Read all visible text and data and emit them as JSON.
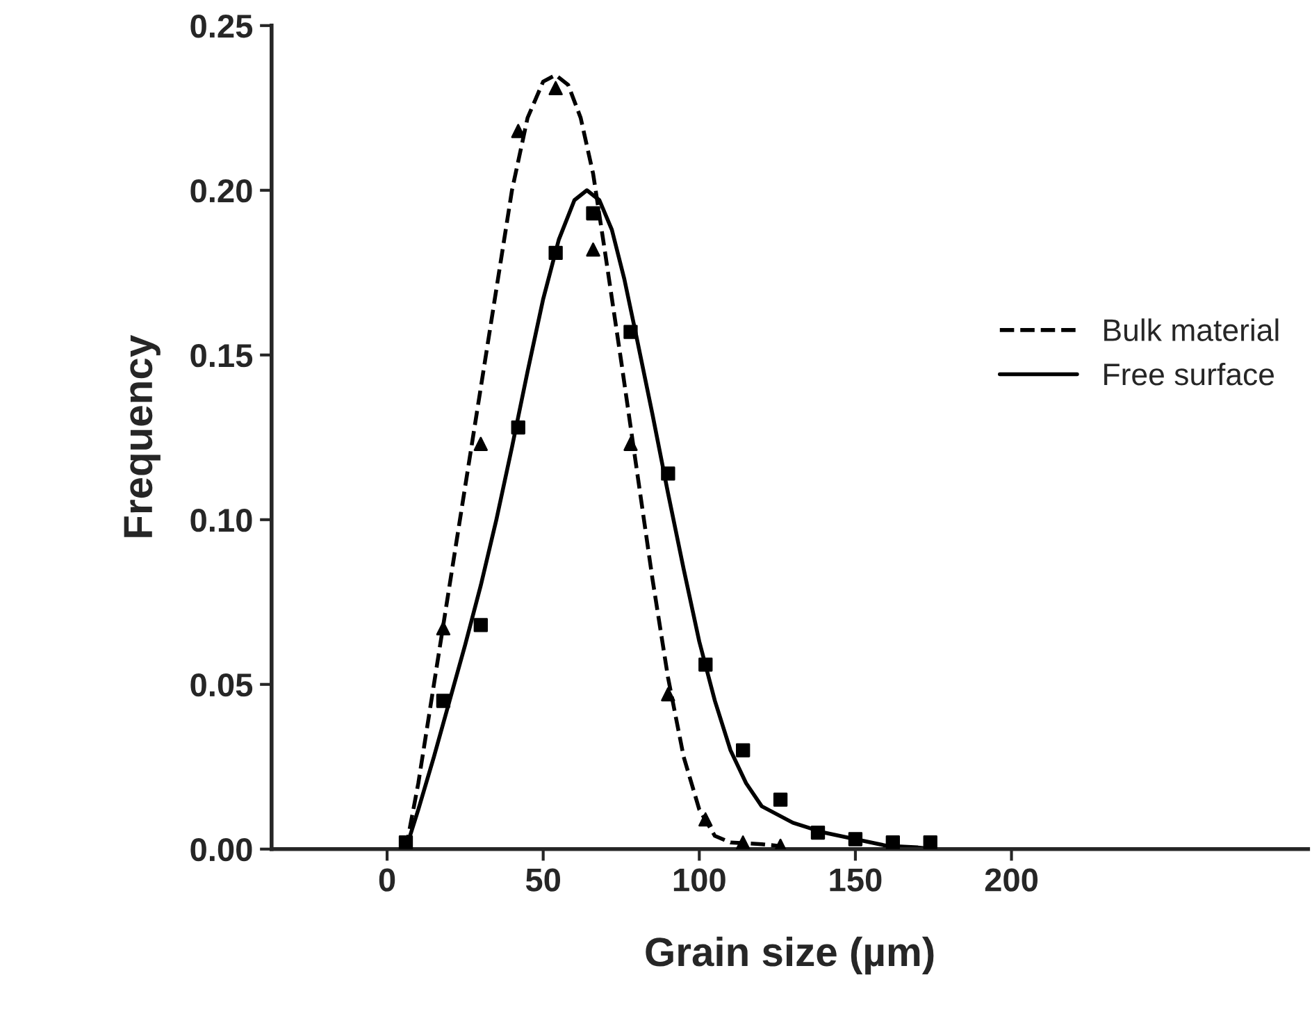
{
  "chart_data": {
    "type": "line",
    "xlabel": "Grain size (µm)",
    "ylabel": "Frequency",
    "xlim": [
      -37,
      295
    ],
    "xticks": [
      0,
      50,
      100,
      150,
      200
    ],
    "ylim": [
      0,
      0.25
    ],
    "yticks": [
      {
        "value": 0,
        "label": "0.00"
      },
      {
        "value": 0.05,
        "label": "0.05"
      },
      {
        "value": 0.1,
        "label": "0.10"
      },
      {
        "value": 0.15,
        "label": "0.15"
      },
      {
        "value": 0.2,
        "label": "0.20"
      },
      {
        "value": 0.25,
        "label": "0.25"
      }
    ],
    "grid": false,
    "legend": "right",
    "series": [
      {
        "name": "Bulk material",
        "color": "#000000",
        "line_style": "dashed",
        "marker": "none",
        "x": [
          6,
          10,
          15,
          20,
          25,
          30,
          35,
          40,
          45,
          50,
          54,
          58,
          62,
          66,
          70,
          75,
          80,
          85,
          90,
          95,
          100,
          105,
          110,
          120,
          125
        ],
        "values": [
          0.0,
          0.02,
          0.05,
          0.08,
          0.11,
          0.14,
          0.17,
          0.2,
          0.222,
          0.233,
          0.235,
          0.232,
          0.222,
          0.205,
          0.18,
          0.148,
          0.115,
          0.082,
          0.052,
          0.028,
          0.012,
          0.004,
          0.002,
          0.0015,
          0.001
        ]
      },
      {
        "name": "Free surface",
        "color": "#000000",
        "line_style": "solid",
        "marker": "none",
        "x": [
          6,
          10,
          15,
          20,
          25,
          30,
          35,
          40,
          45,
          50,
          55,
          60,
          64,
          68,
          72,
          76,
          80,
          85,
          90,
          95,
          100,
          105,
          110,
          115,
          120,
          130,
          140,
          150,
          160,
          170,
          175
        ],
        "values": [
          0.0,
          0.012,
          0.028,
          0.045,
          0.062,
          0.08,
          0.1,
          0.122,
          0.145,
          0.167,
          0.185,
          0.197,
          0.2,
          0.197,
          0.188,
          0.173,
          0.155,
          0.132,
          0.108,
          0.085,
          0.063,
          0.045,
          0.03,
          0.02,
          0.013,
          0.008,
          0.005,
          0.003,
          0.001,
          0.0005,
          0.0
        ]
      },
      {
        "type": "scatter",
        "color": "#000000",
        "marker": "triangle",
        "x": [
          18,
          30,
          42,
          54,
          66,
          78,
          90,
          102,
          114,
          126
        ],
        "values": [
          0.067,
          0.123,
          0.218,
          0.231,
          0.182,
          0.123,
          0.047,
          0.009,
          0.002,
          0.001
        ]
      },
      {
        "type": "scatter",
        "color": "#000000",
        "marker": "square",
        "x": [
          6,
          18,
          30,
          42,
          54,
          66,
          78,
          90,
          102,
          114,
          126,
          138,
          150,
          162,
          174
        ],
        "values": [
          0.002,
          0.045,
          0.068,
          0.128,
          0.181,
          0.193,
          0.157,
          0.114,
          0.056,
          0.03,
          0.015,
          0.005,
          0.003,
          0.002,
          0.002
        ]
      }
    ]
  }
}
